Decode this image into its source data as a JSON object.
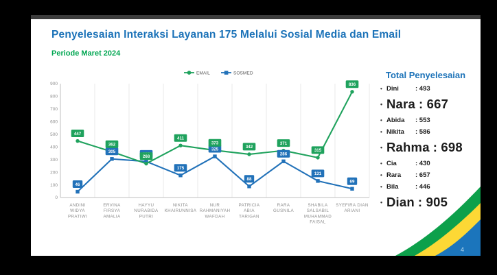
{
  "slide": {
    "title": "Penyelesaian Interaksi Layanan 175 Melalui Sosial Media dan Email",
    "subtitle": "Periode Maret 2024",
    "page_number": "4"
  },
  "colors": {
    "title_blue": "#1b72b8",
    "subtitle_green": "#00a651",
    "email_green": "#1fa25d",
    "sosmed_blue": "#2272b9",
    "axis_text": "#8c8c8c",
    "swoosh_green": "#0da04b",
    "swoosh_yellow": "#fdd835",
    "swoosh_blue": "#1b75bc"
  },
  "chart_data": {
    "type": "line",
    "title": "Penyelesaian Interaksi Layanan 175 Melalui Sosial Media dan Email",
    "xlabel": "",
    "ylabel": "",
    "ylim": [
      0,
      900
    ],
    "ytick_step": 100,
    "grid": "vertical",
    "legend_position": "top",
    "categories": [
      [
        "ANDINI",
        "WIDYA",
        "PRATIWI"
      ],
      [
        "ERVINA",
        "FIRSYA",
        "AMALIA"
      ],
      [
        "HAYYU",
        "NURABIDA",
        "PUTRI"
      ],
      [
        "NIKITA",
        "KHAIRUNNISA"
      ],
      [
        "NUR",
        "RAHMANIYAH",
        "WAFDAH"
      ],
      [
        "PATRICIA",
        "ABIA",
        "TARIGAN"
      ],
      [
        "RARA",
        "GUSNILA"
      ],
      [
        "SHABILA",
        "SALSABIL",
        "MUHAMMAD",
        "FAISAL"
      ],
      [
        "SYEFIRA DIAN",
        "ARIANI"
      ]
    ],
    "series": [
      {
        "name": "SOSMED",
        "color": "#2272b9",
        "marker": "square",
        "values": [
          46,
          305,
          285,
          175,
          325,
          88,
          286,
          131,
          69
        ]
      },
      {
        "name": "EMAIL",
        "color": "#1fa25d",
        "marker": "circle",
        "values": [
          447,
          362,
          268,
          411,
          373,
          342,
          371,
          315,
          836
        ]
      }
    ],
    "legend": [
      "EMAIL",
      "SOSMED"
    ]
  },
  "totals_panel": {
    "title": "Total Penyelesaian",
    "items": [
      {
        "name": "Dini",
        "value": 493,
        "emphasized": false
      },
      {
        "name": "Nara",
        "value": 667,
        "emphasized": true
      },
      {
        "name": "Abida",
        "value": 553,
        "emphasized": false
      },
      {
        "name": "Nikita",
        "value": 586,
        "emphasized": false
      },
      {
        "name": "Rahma",
        "value": 698,
        "emphasized": true
      },
      {
        "name": "Cia",
        "value": 430,
        "emphasized": false
      },
      {
        "name": "Rara",
        "value": 657,
        "emphasized": false
      },
      {
        "name": "Bila",
        "value": 446,
        "emphasized": false
      },
      {
        "name": "Dian",
        "value": 905,
        "emphasized": true
      }
    ]
  }
}
